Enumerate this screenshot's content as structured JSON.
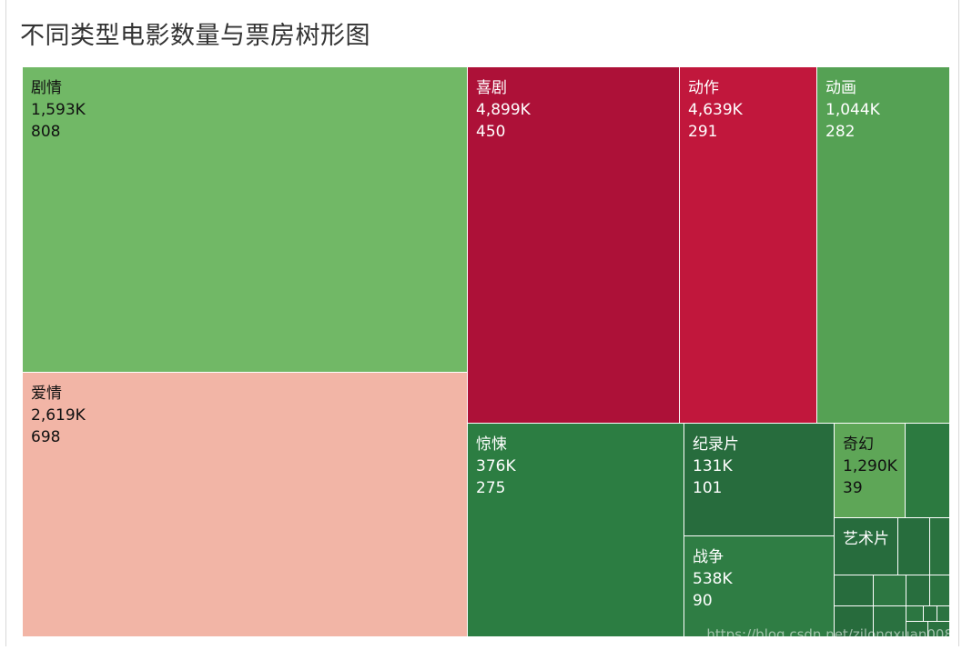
{
  "title": "不同类型电影数量与票房树形图",
  "watermark": "https://blog.csdn.net/zilongxuan008",
  "chart_data": {
    "type": "treemap",
    "title": "不同类型电影数量与票房树形图",
    "items": [
      {
        "genre": "剧情",
        "box_office": "1,593K",
        "count": 808,
        "color": "#71b866",
        "text_color": "#111111"
      },
      {
        "genre": "爱情",
        "box_office": "2,619K",
        "count": 698,
        "color": "#f2b5a6",
        "text_color": "#111111"
      },
      {
        "genre": "喜剧",
        "box_office": "4,899K",
        "count": 450,
        "color": "#ad1138",
        "text_color": "#ffffff"
      },
      {
        "genre": "动作",
        "box_office": "4,639K",
        "count": 291,
        "color": "#c1173c",
        "text_color": "#ffffff"
      },
      {
        "genre": "动画",
        "box_office": "1,044K",
        "count": 282,
        "color": "#55a154",
        "text_color": "#ffffff"
      },
      {
        "genre": "惊悚",
        "box_office": "376K",
        "count": 275,
        "color": "#2c7d42",
        "text_color": "#ffffff"
      },
      {
        "genre": "纪录片",
        "box_office": "131K",
        "count": 101,
        "color": "#276c3d",
        "text_color": "#ffffff"
      },
      {
        "genre": "战争",
        "box_office": "538K",
        "count": 90,
        "color": "#2f7d44",
        "text_color": "#ffffff"
      },
      {
        "genre": "奇幻",
        "box_office": "1,290K",
        "count": 39,
        "color": "#5ea657",
        "text_color": "#111111"
      },
      {
        "genre": "艺术片",
        "box_office": "",
        "count": null,
        "color": "#276c3d",
        "text_color": "#ffffff"
      }
    ],
    "unlabeled_tile_colors": [
      "#2c7a40",
      "#276d3d",
      "#2a723f",
      "#276c3d",
      "#2d7742",
      "#286e3e",
      "#2b7440",
      "#276b3c",
      "#2a7140",
      "#2c7641",
      "#286f3e",
      "#2b7341",
      "#296f3e",
      "#2a7240"
    ]
  }
}
